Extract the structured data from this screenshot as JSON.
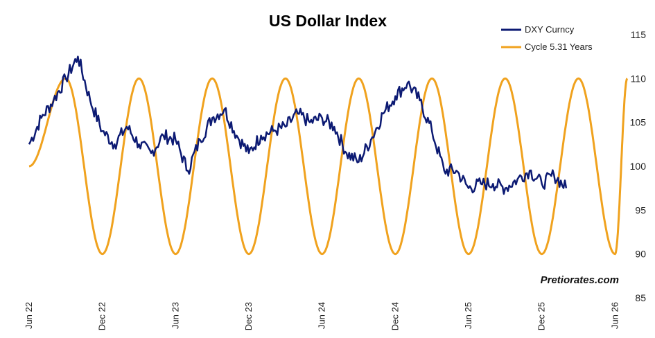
{
  "chart_data": {
    "type": "line",
    "title": "US Dollar Index",
    "watermark": "Pretiorates.com",
    "xlabel": "",
    "ylabel": "",
    "ylim": [
      85,
      115
    ],
    "yticks": [
      "85",
      "90",
      "95",
      "100",
      "105",
      "110",
      "115"
    ],
    "xticks": [
      "Jun 22",
      "Dec 22",
      "Jun 23",
      "Dec 23",
      "Jun 24",
      "Dec 24",
      "Jun 25",
      "Dec 25",
      "Jun 26"
    ],
    "xrange": [
      "2022-06",
      "2026-07"
    ],
    "grid": false,
    "legend_position": "top-right",
    "colors": {
      "dxy": "#0c1a73",
      "cycle": "#f0a21e"
    },
    "series": [
      {
        "name": "DXY Curncy",
        "color": "#0c1a73",
        "x": [
          "Jun 22",
          "Jul 22",
          "Aug 22",
          "Sep 22",
          "Oct 22",
          "Nov 22",
          "Dec 22",
          "Jan 23",
          "Feb 23",
          "Mar 23",
          "Apr 23",
          "May 23",
          "Jun 23",
          "Jul 23",
          "Aug 23",
          "Sep 23",
          "Oct 23",
          "Nov 23",
          "Dec 23",
          "Jan 24",
          "Feb 24",
          "Mar 24",
          "Apr 24",
          "May 24",
          "Jun 24",
          "Jul 24",
          "Aug 24",
          "Sep 24",
          "Oct 24",
          "Nov 24",
          "Dec 24",
          "Jan 25",
          "Feb 25",
          "Mar 25",
          "Apr 25",
          "May 25",
          "Jun 25",
          "Jul 25",
          "Aug 25",
          "Sep 25",
          "Oct 25",
          "Nov 25",
          "Dec 25",
          "Jan 26",
          "Feb 26"
        ],
        "values": [
          102.5,
          105.5,
          107.5,
          110.0,
          112.5,
          107.5,
          104.0,
          102.5,
          104.5,
          102.5,
          101.5,
          103.5,
          103.0,
          99.5,
          103.0,
          105.5,
          106.5,
          103.5,
          101.5,
          103.5,
          104.0,
          104.5,
          106.0,
          105.0,
          105.5,
          104.5,
          101.5,
          100.5,
          103.0,
          106.0,
          108.0,
          109.5,
          107.5,
          104.0,
          99.5,
          99.5,
          97.5,
          98.0,
          98.0,
          97.5,
          98.5,
          99.5,
          98.0,
          99.0,
          97.5
        ]
      },
      {
        "name": "Cycle 5.31 Years",
        "color": "#f0a21e",
        "x": [
          "Jun 22",
          "Sep 22",
          "Dec 22",
          "Mar 23",
          "Jun 23",
          "Sep 23",
          "Dec 23",
          "Mar 24",
          "Jun 24",
          "Sep 24",
          "Dec 24",
          "Mar 25",
          "Jun 25",
          "Sep 25",
          "Dec 25",
          "Mar 26",
          "Jun 26",
          "Jul 26"
        ],
        "values": [
          100.0,
          110.0,
          90.0,
          110.0,
          90.0,
          110.0,
          90.0,
          110.0,
          90.0,
          110.0,
          90.0,
          110.0,
          90.0,
          110.0,
          90.0,
          110.0,
          90.0,
          110.0
        ],
        "amplitude": 10,
        "center": 100
      }
    ]
  }
}
